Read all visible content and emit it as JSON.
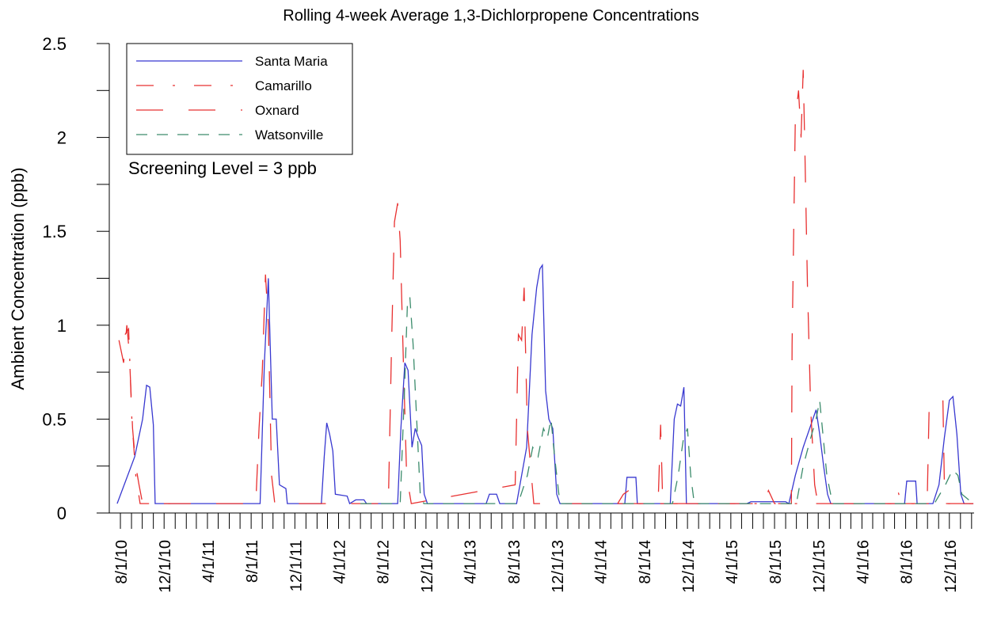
{
  "chart_data": {
    "type": "line",
    "title": "Rolling 4-week Average 1,3-Dichlorpropene Concentrations",
    "y_label": "Ambient Concentration (ppb)",
    "annotation": "Screening Level = 3 ppb",
    "xlim": [
      "2010-07-01",
      "2017-02-08"
    ],
    "ylim": [
      0,
      2.5
    ],
    "yticks": [
      0,
      0.5,
      1,
      1.5,
      2,
      2.5
    ],
    "yminor_ticks": [
      0.25,
      0.75,
      1.25,
      1.75,
      2.25
    ],
    "xticks": [
      {
        "value": "2010-08-01",
        "label": "8/1/10"
      },
      {
        "value": "2010-12-01",
        "label": "12/1/10"
      },
      {
        "value": "2011-04-01",
        "label": "4/1/11"
      },
      {
        "value": "2011-08-01",
        "label": "8/1/11"
      },
      {
        "value": "2011-12-01",
        "label": "12/1/11"
      },
      {
        "value": "2012-04-01",
        "label": "4/1/12"
      },
      {
        "value": "2012-08-01",
        "label": "8/1/12"
      },
      {
        "value": "2012-12-01",
        "label": "12/1/12"
      },
      {
        "value": "2013-04-01",
        "label": "4/1/13"
      },
      {
        "value": "2013-08-01",
        "label": "8/1/13"
      },
      {
        "value": "2013-12-01",
        "label": "12/1/13"
      },
      {
        "value": "2014-04-01",
        "label": "4/1/14"
      },
      {
        "value": "2014-08-01",
        "label": "8/1/14"
      },
      {
        "value": "2014-12-01",
        "label": "12/1/14"
      },
      {
        "value": "2015-04-01",
        "label": "4/1/15"
      },
      {
        "value": "2015-08-01",
        "label": "8/1/15"
      },
      {
        "value": "2015-12-01",
        "label": "12/1/15"
      },
      {
        "value": "2016-04-01",
        "label": "4/1/16"
      },
      {
        "value": "2016-08-01",
        "label": "8/1/16"
      },
      {
        "value": "2016-12-01",
        "label": "12/1/16"
      }
    ],
    "xminor_ticks": [
      "2010-09-01",
      "2010-10-01",
      "2010-11-01",
      "2011-01-01",
      "2011-02-01",
      "2011-03-01",
      "2011-05-01",
      "2011-06-01",
      "2011-07-01",
      "2011-09-01",
      "2011-10-01",
      "2011-11-01",
      "2012-01-01",
      "2012-02-01",
      "2012-03-01",
      "2012-05-01",
      "2012-06-01",
      "2012-07-01",
      "2012-09-01",
      "2012-10-01",
      "2012-11-01",
      "2013-01-01",
      "2013-02-01",
      "2013-03-01",
      "2013-05-01",
      "2013-06-01",
      "2013-07-01",
      "2013-09-01",
      "2013-10-01",
      "2013-11-01",
      "2014-01-01",
      "2014-02-01",
      "2014-03-01",
      "2014-05-01",
      "2014-06-01",
      "2014-07-01",
      "2014-09-01",
      "2014-10-01",
      "2014-11-01",
      "2015-01-01",
      "2015-02-01",
      "2015-03-01",
      "2015-05-01",
      "2015-06-01",
      "2015-07-01",
      "2015-09-01",
      "2015-10-01",
      "2015-11-01",
      "2016-01-01",
      "2016-02-01",
      "2016-03-01",
      "2016-05-01",
      "2016-06-01",
      "2016-07-01",
      "2016-09-01",
      "2016-10-01",
      "2016-11-01",
      "2017-01-01",
      "2017-02-01"
    ],
    "legend": "upper left",
    "series": [
      {
        "name": "Santa Maria",
        "color": "#3838d0",
        "dash": "solid",
        "x": [
          "2010-07-23",
          "2010-09-10",
          "2010-10-02",
          "2010-10-13",
          "2010-10-22",
          "2010-11-01",
          "2010-11-06",
          "2011-08-26",
          "2011-09-07",
          "2011-09-18",
          "2011-09-29",
          "2011-10-10",
          "2011-10-19",
          "2011-11-06",
          "2011-11-10",
          "2012-02-13",
          "2012-02-21",
          "2012-02-28",
          "2012-03-07",
          "2012-03-16",
          "2012-03-23",
          "2012-04-25",
          "2012-05-02",
          "2012-05-19",
          "2012-06-11",
          "2012-06-18",
          "2012-09-13",
          "2012-09-22",
          "2012-10-03",
          "2012-10-12",
          "2012-10-23",
          "2012-11-01",
          "2012-11-10",
          "2012-11-19",
          "2012-11-26",
          "2012-12-05",
          "2013-05-18",
          "2013-05-27",
          "2013-06-16",
          "2013-06-25",
          "2013-08-11",
          "2013-09-08",
          "2013-09-23",
          "2013-10-06",
          "2013-10-15",
          "2013-10-22",
          "2013-10-31",
          "2013-11-09",
          "2013-11-20",
          "2013-12-01",
          "2013-12-10",
          "2014-06-09",
          "2014-06-15",
          "2014-07-10",
          "2014-07-14",
          "2014-10-14",
          "2014-10-25",
          "2014-11-03",
          "2014-11-12",
          "2014-11-21",
          "2014-11-28",
          "2015-05-16",
          "2015-05-27",
          "2015-09-01",
          "2015-09-10",
          "2015-09-28",
          "2015-10-20",
          "2015-11-07",
          "2015-11-25",
          "2015-12-05",
          "2015-12-16",
          "2015-12-27",
          "2016-01-05",
          "2016-07-29",
          "2016-08-04",
          "2016-08-29",
          "2016-09-02",
          "2016-10-16",
          "2016-11-02",
          "2016-11-17",
          "2016-12-01",
          "2016-12-11",
          "2016-12-22",
          "2017-01-02",
          "2017-01-11",
          "2017-02-06"
        ],
        "values": [
          0.05,
          0.3,
          0.5,
          0.68,
          0.67,
          0.47,
          0.05,
          0.05,
          0.8,
          1.25,
          0.5,
          0.5,
          0.15,
          0.13,
          0.05,
          0.05,
          0.3,
          0.48,
          0.42,
          0.33,
          0.1,
          0.09,
          0.05,
          0.07,
          0.07,
          0.05,
          0.05,
          0.45,
          0.8,
          0.76,
          0.35,
          0.45,
          0.4,
          0.36,
          0.1,
          0.05,
          0.05,
          0.1,
          0.1,
          0.05,
          0.05,
          0.35,
          0.95,
          1.2,
          1.3,
          1.32,
          0.65,
          0.5,
          0.45,
          0.1,
          0.05,
          0.05,
          0.19,
          0.19,
          0.05,
          0.05,
          0.5,
          0.58,
          0.57,
          0.67,
          0.05,
          0.05,
          0.06,
          0.06,
          0.05,
          0.2,
          0.35,
          0.45,
          0.55,
          0.42,
          0.25,
          0.1,
          0.05,
          0.05,
          0.17,
          0.17,
          0.05,
          0.05,
          0.15,
          0.4,
          0.6,
          0.62,
          0.42,
          0.1,
          0.05,
          0.05
        ]
      },
      {
        "name": "Camarillo",
        "color": "#e83030",
        "dash": "dashdot",
        "x": [
          "2010-08-14",
          "2010-08-24",
          "2010-09-02",
          "2010-09-13",
          "2010-09-25",
          "2011-02-01",
          "2011-06-01",
          "2014-05-20",
          "2014-06-05",
          "2014-06-20",
          "2014-07-05",
          "2014-08-01",
          "2015-03-01",
          "2015-07-01",
          "2015-07-15",
          "2015-08-01",
          "2016-05-01",
          "2016-07-01",
          "2016-07-10",
          "2016-07-20",
          "2016-09-01",
          "2017-02-06"
        ],
        "values": [
          0.95,
          0.98,
          0.5,
          0.2,
          0.05,
          0.05,
          null,
          0.05,
          0.1,
          0.12,
          0.05,
          0.05,
          0.05,
          0.05,
          0.12,
          0.05,
          0.05,
          0.05,
          0.12,
          0.05,
          0.05,
          0.05
        ]
      },
      {
        "name": "Oxnard",
        "color": "#e83030",
        "dash": "long",
        "x": [
          "2010-07-28",
          "2010-08-10",
          "2010-08-19",
          "2010-08-26",
          "2010-09-04",
          "2010-09-13",
          "2010-09-22",
          "2010-10-02",
          "2011-08-14",
          "2011-08-23",
          "2011-09-01",
          "2011-09-10",
          "2011-09-18",
          "2011-09-27",
          "2011-10-06",
          "2012-08-18",
          "2012-08-27",
          "2012-09-04",
          "2012-09-13",
          "2012-09-20",
          "2012-09-29",
          "2012-10-08",
          "2012-10-21",
          "2013-08-07",
          "2013-08-16",
          "2013-08-25",
          "2013-09-01",
          "2013-09-10",
          "2013-09-19",
          "2013-09-28",
          "2014-09-10",
          "2014-09-17",
          "2014-09-23",
          "2015-09-17",
          "2015-09-19",
          "2015-09-28",
          "2015-10-07",
          "2015-10-14",
          "2015-10-20",
          "2015-10-25",
          "2015-11-01",
          "2015-11-10",
          "2015-11-21",
          "2015-11-30",
          "2016-09-30",
          "2016-10-06",
          "2016-10-22",
          "2016-11-13",
          "2016-11-18",
          "2017-02-06"
        ],
        "values": [
          0.92,
          0.8,
          1.0,
          0.85,
          0.45,
          0.25,
          0.15,
          0.05,
          0.05,
          0.45,
          0.75,
          1.27,
          1.0,
          0.2,
          0.05,
          0.05,
          0.9,
          1.55,
          1.65,
          1.45,
          0.8,
          0.2,
          0.05,
          0.15,
          0.95,
          0.92,
          1.2,
          0.45,
          0.25,
          0.05,
          0.05,
          0.47,
          0.05,
          0.05,
          0.9,
          2.1,
          2.25,
          2.0,
          2.36,
          1.9,
          1.2,
          0.55,
          0.15,
          0.05,
          0.05,
          0.6,
          0.6,
          0.6,
          0.05,
          0.05
        ]
      },
      {
        "name": "Watsonville",
        "color": "#3c8c6c",
        "dash": "dash",
        "x": [
          "2012-06-01",
          "2012-09-20",
          "2012-10-01",
          "2012-10-10",
          "2012-10-17",
          "2012-10-26",
          "2012-11-05",
          "2012-11-15",
          "2012-11-25",
          "2013-08-15",
          "2013-09-10",
          "2013-09-25",
          "2013-10-10",
          "2013-10-25",
          "2013-11-05",
          "2013-11-15",
          "2013-11-25",
          "2013-12-10",
          "2014-10-20",
          "2014-11-05",
          "2014-11-20",
          "2014-12-01",
          "2014-12-10",
          "2014-12-20",
          "2015-10-01",
          "2015-10-20",
          "2015-11-10",
          "2015-11-25",
          "2015-12-05",
          "2015-12-15",
          "2015-12-25",
          "2016-01-10",
          "2016-10-20",
          "2016-11-20",
          "2016-12-10",
          "2016-12-25",
          "2017-01-05",
          "2017-02-06"
        ],
        "values": [
          0.05,
          0.05,
          0.6,
          1.1,
          1.15,
          0.9,
          0.5,
          0.1,
          0.05,
          0.05,
          0.2,
          0.35,
          0.3,
          0.45,
          0.4,
          0.5,
          0.3,
          0.05,
          0.05,
          0.2,
          0.4,
          0.45,
          0.2,
          0.05,
          0.05,
          0.25,
          0.4,
          0.5,
          0.6,
          0.4,
          0.2,
          0.05,
          0.05,
          0.15,
          0.23,
          0.2,
          0.1,
          0.05
        ]
      }
    ]
  }
}
